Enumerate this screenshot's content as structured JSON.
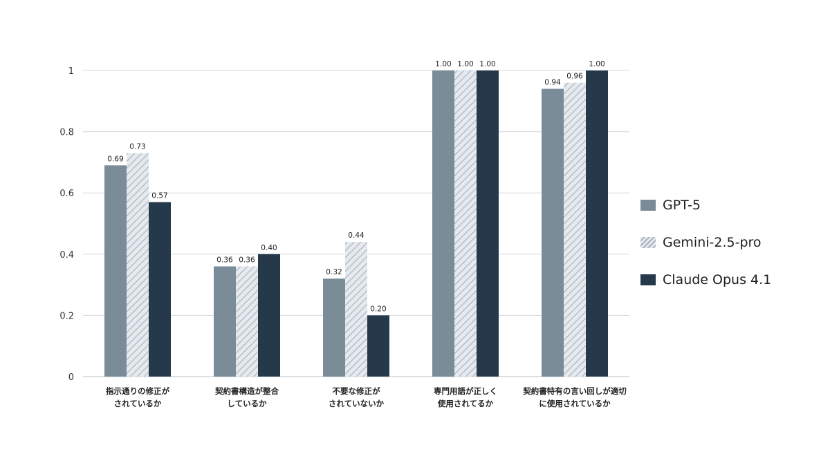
{
  "chart_data": {
    "type": "bar",
    "categories": [
      [
        "指示通りの修正が",
        "されているか"
      ],
      [
        "契約書構造が整合",
        "しているか"
      ],
      [
        "不要な修正が",
        "されていないか"
      ],
      [
        "専門用語が正しく",
        "使用されてるか"
      ],
      [
        "契約書特有の言い回しが適切",
        "に使用されているか"
      ]
    ],
    "series": [
      {
        "name": "GPT-5",
        "values": [
          0.69,
          0.36,
          0.32,
          1.0,
          0.94
        ],
        "labels": [
          "0.69",
          "0.36",
          "0.32",
          "1.00",
          "0.94"
        ],
        "color": "#7a8c98",
        "pattern": "solid"
      },
      {
        "name": "Gemini-2.5-pro",
        "values": [
          0.73,
          0.36,
          0.44,
          1.0,
          0.96
        ],
        "labels": [
          "0.73",
          "0.36",
          "0.44",
          "1.00",
          "0.96"
        ],
        "color": "#c5ccd5",
        "pattern": "hatched"
      },
      {
        "name": "Claude Opus 4.1",
        "values": [
          0.57,
          0.4,
          0.2,
          1.0,
          1.0
        ],
        "labels": [
          "0.57",
          "0.40",
          "0.20",
          "1.00",
          "1.00"
        ],
        "color": "#26394a",
        "pattern": "solid"
      }
    ],
    "y_ticks": [
      "0",
      "0.2",
      "0.4",
      "0.6",
      "0.8",
      "1"
    ],
    "ylim": [
      0,
      1
    ],
    "grid": true,
    "legend_position": "right"
  }
}
